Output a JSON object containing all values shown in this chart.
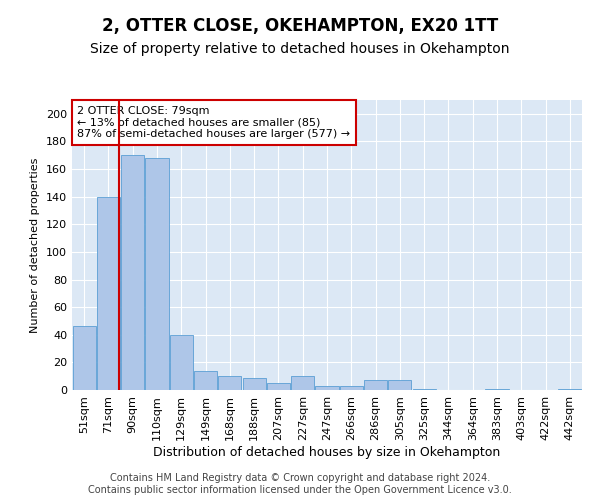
{
  "title": "2, OTTER CLOSE, OKEHAMPTON, EX20 1TT",
  "subtitle": "Size of property relative to detached houses in Okehampton",
  "xlabel": "Distribution of detached houses by size in Okehampton",
  "ylabel": "Number of detached properties",
  "categories": [
    "51sqm",
    "71sqm",
    "90sqm",
    "110sqm",
    "129sqm",
    "149sqm",
    "168sqm",
    "188sqm",
    "207sqm",
    "227sqm",
    "247sqm",
    "266sqm",
    "286sqm",
    "305sqm",
    "325sqm",
    "344sqm",
    "364sqm",
    "383sqm",
    "403sqm",
    "422sqm",
    "442sqm"
  ],
  "values": [
    46,
    140,
    170,
    168,
    40,
    14,
    10,
    9,
    5,
    10,
    3,
    3,
    7,
    7,
    1,
    0,
    0,
    1,
    0,
    0,
    1
  ],
  "bar_color": "#aec6e8",
  "bar_edge_color": "#5a9fd4",
  "annotation_line1": "2 OTTER CLOSE: 79sqm",
  "annotation_line2": "← 13% of detached houses are smaller (85)",
  "annotation_line3": "87% of semi-detached houses are larger (577) →",
  "vline_x_index": 1.45,
  "vline_color": "#cc0000",
  "ylim": [
    0,
    210
  ],
  "yticks": [
    0,
    20,
    40,
    60,
    80,
    100,
    120,
    140,
    160,
    180,
    200
  ],
  "bg_color": "#dce8f5",
  "footer_text": "Contains HM Land Registry data © Crown copyright and database right 2024.\nContains public sector information licensed under the Open Government Licence v3.0.",
  "title_fontsize": 12,
  "subtitle_fontsize": 10,
  "xlabel_fontsize": 9,
  "ylabel_fontsize": 8,
  "tick_fontsize": 8,
  "annotation_fontsize": 8,
  "footer_fontsize": 7
}
